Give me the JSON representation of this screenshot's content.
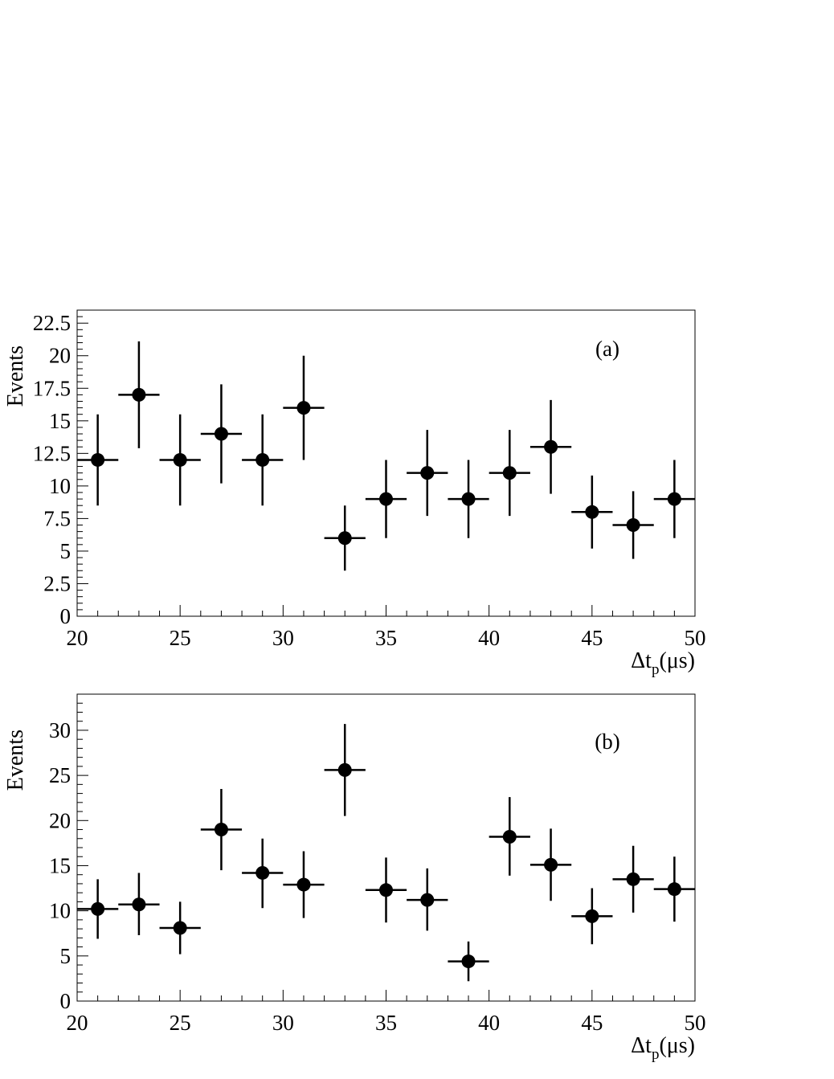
{
  "chart_data": [
    {
      "type": "scatter",
      "panel_label": "(a)",
      "ylabel": "Events",
      "xlabel": "Δt",
      "xlabel_sub": "p",
      "xlabel_unit": "(μs)",
      "xlim": [
        20,
        50
      ],
      "ylim": [
        0,
        23.5
      ],
      "xticks": [
        20,
        25,
        30,
        35,
        40,
        45,
        50
      ],
      "xtick_labels": [
        "20",
        "25",
        "30",
        "35",
        "40",
        "45",
        "50"
      ],
      "yticks": [
        0,
        2.5,
        5,
        7.5,
        10,
        12.5,
        15,
        17.5,
        20,
        22.5
      ],
      "ytick_labels": [
        "0",
        "2.5",
        "5",
        "7.5",
        "10",
        "12.5",
        "15",
        "17.5",
        "20",
        "22.5"
      ],
      "y_minor_step": 0.5,
      "x_minor_step": 1,
      "bin_width": 2,
      "series": [
        {
          "x": [
            21,
            23,
            25,
            27,
            29,
            31,
            33,
            35,
            37,
            39,
            41,
            43,
            45,
            47,
            49
          ],
          "y": [
            12,
            17,
            12,
            14,
            12,
            16,
            6,
            9,
            11,
            9,
            11,
            13,
            8,
            7,
            9
          ],
          "yerr_low": [
            3.5,
            4.1,
            3.5,
            3.8,
            3.5,
            4.0,
            2.5,
            3.0,
            3.3,
            3.0,
            3.3,
            3.6,
            2.8,
            2.6,
            3.0
          ],
          "yerr_high": [
            3.5,
            4.1,
            3.5,
            3.8,
            3.5,
            4.0,
            2.5,
            3.0,
            3.3,
            3.0,
            3.3,
            3.6,
            2.8,
            2.6,
            3.0
          ]
        }
      ],
      "grid": false,
      "legend": "none",
      "color": "#000000"
    },
    {
      "type": "scatter",
      "panel_label": "(b)",
      "ylabel": "Events",
      "xlabel": "Δt",
      "xlabel_sub": "p",
      "xlabel_unit": "(μs)",
      "xlim": [
        20,
        50
      ],
      "ylim": [
        0,
        34
      ],
      "xticks": [
        20,
        25,
        30,
        35,
        40,
        45,
        50
      ],
      "xtick_labels": [
        "20",
        "25",
        "30",
        "35",
        "40",
        "45",
        "50"
      ],
      "yticks": [
        0,
        5,
        10,
        15,
        20,
        25,
        30
      ],
      "ytick_labels": [
        "0",
        "5",
        "10",
        "15",
        "20",
        "25",
        "30"
      ],
      "y_minor_step": 1,
      "x_minor_step": 1,
      "bin_width": 2,
      "series": [
        {
          "x": [
            21,
            23,
            25,
            27,
            29,
            31,
            33,
            35,
            37,
            39,
            41,
            43,
            45,
            47,
            49
          ],
          "y": [
            10.2,
            10.7,
            8.1,
            19.0,
            14.2,
            12.9,
            25.6,
            12.3,
            11.2,
            4.4,
            18.2,
            15.1,
            9.4,
            13.5,
            12.4
          ],
          "yerr_low": [
            3.3,
            3.4,
            2.9,
            4.5,
            3.9,
            3.7,
            5.1,
            3.6,
            3.4,
            2.2,
            4.3,
            4.0,
            3.1,
            3.7,
            3.6
          ],
          "yerr_high": [
            3.3,
            3.5,
            2.9,
            4.5,
            3.8,
            3.7,
            5.1,
            3.6,
            3.5,
            2.2,
            4.4,
            4.0,
            3.1,
            3.7,
            3.6
          ]
        }
      ],
      "grid": false,
      "legend": "none",
      "color": "#000000"
    }
  ]
}
